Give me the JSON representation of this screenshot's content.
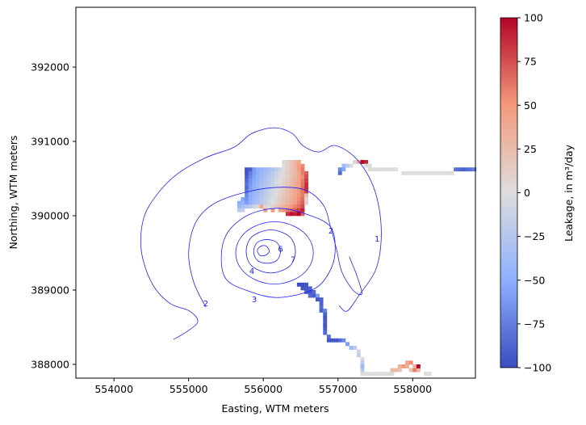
{
  "chart_data": {
    "type": "heatmap",
    "title": "",
    "xlabel": "Easting, WTM meters",
    "ylabel": "Northing, WTM meters",
    "xlim": [
      553490,
      558840
    ],
    "ylim": [
      387815,
      392805
    ],
    "xticks": [
      554000,
      555000,
      556000,
      557000,
      558000
    ],
    "yticks": [
      388000,
      389000,
      390000,
      391000,
      392000
    ],
    "grid": false,
    "colormap": {
      "name": "coolwarm",
      "stops": [
        "#3b4cc0",
        "#8db0fe",
        "#dddddd",
        "#f49a7b",
        "#b40426"
      ]
    },
    "colorbar": {
      "label": "Leakage, in m³/day",
      "range": [
        -100,
        100
      ],
      "ticks": [
        -100,
        -75,
        -50,
        -25,
        0,
        25,
        50,
        75,
        100
      ],
      "placement": "right"
    },
    "cell_size": 50,
    "cell_rows": [
      {
        "n": 390700,
        "e0": 556250,
        "v": [
          5,
          10,
          20,
          30,
          40
        ]
      },
      {
        "n": 390650,
        "e0": 556250,
        "v": [
          0,
          10,
          20,
          30,
          45,
          55
        ]
      },
      {
        "n": 390600,
        "e0": 555750,
        "v": [
          -95,
          -90,
          -60,
          -50,
          -45,
          -40,
          -35,
          -30,
          -20,
          -10,
          0,
          10,
          20,
          30,
          50,
          60
        ]
      },
      {
        "n": 390550,
        "e0": 555750,
        "v": [
          -95,
          -75,
          -60,
          -50,
          -42,
          -35,
          -28,
          -20,
          -12,
          -5,
          5,
          12,
          20,
          28,
          38,
          60,
          70
        ]
      },
      {
        "n": 390500,
        "e0": 555750,
        "v": [
          -90,
          -70,
          -55,
          -48,
          -40,
          -32,
          -25,
          -18,
          -10,
          -3,
          5,
          12,
          20,
          30,
          40,
          55,
          75
        ]
      },
      {
        "n": 390450,
        "e0": 555750,
        "v": [
          -85,
          -65,
          -52,
          -45,
          -38,
          -30,
          -22,
          -15,
          -8,
          0,
          8,
          15,
          24,
          32,
          42,
          60,
          80
        ]
      },
      {
        "n": 390400,
        "e0": 555750,
        "v": [
          -80,
          -62,
          -50,
          -42,
          -35,
          -28,
          -20,
          -12,
          -5,
          2,
          10,
          18,
          26,
          35,
          45,
          62,
          85
        ]
      },
      {
        "n": 390350,
        "e0": 555750,
        "v": [
          -85,
          -60,
          -48,
          -40,
          -32,
          -25,
          -18,
          -10,
          -3,
          5,
          12,
          20,
          28,
          38,
          48,
          65,
          85
        ]
      },
      {
        "n": 390300,
        "e0": 555750,
        "v": [
          -75,
          -55,
          -45,
          -38,
          -30,
          -22,
          -15,
          -8,
          0,
          8,
          15,
          22,
          30,
          40,
          50,
          62,
          80
        ]
      },
      {
        "n": 390250,
        "e0": 555750,
        "v": [
          -70,
          -52,
          -42,
          -35,
          -28,
          -20,
          -12,
          -5,
          2,
          10,
          18,
          25,
          32,
          42,
          52,
          60,
          20
        ]
      },
      {
        "n": 390200,
        "e0": 555650,
        "v": [
          null,
          -55,
          -65,
          -50,
          -40,
          -33,
          -25,
          -18,
          -10,
          -3,
          5,
          12,
          20,
          28,
          35,
          45,
          55,
          65,
          5
        ]
      },
      {
        "n": 390150,
        "e0": 555650,
        "v": [
          -50,
          -45,
          -60,
          -48,
          -38,
          -30,
          -22,
          -15,
          -8,
          0,
          8,
          15,
          22,
          30,
          38,
          48,
          58,
          70,
          10
        ]
      },
      {
        "n": 390100,
        "e0": 555650,
        "v": [
          -40,
          -35,
          -30,
          -25,
          -10,
          5,
          40,
          -5,
          2,
          10,
          18,
          25,
          32,
          40,
          50,
          58,
          65,
          75
        ]
      },
      {
        "n": 390050,
        "e0": 555650,
        "v": [
          -20,
          -15,
          null,
          null,
          null,
          null,
          null,
          45,
          null,
          50,
          null,
          45,
          50,
          60,
          65,
          70,
          80,
          90
        ]
      },
      {
        "n": 390000,
        "e0": 556300,
        "v": [
          85,
          95,
          90,
          100,
          70
        ]
      },
      {
        "n": 390700,
        "e0": 557200,
        "v": [
          10,
          30,
          100,
          90
        ]
      },
      {
        "n": 390650,
        "e0": 557050,
        "v": [
          -40,
          -25,
          -5,
          null,
          null,
          null,
          0,
          0
        ]
      },
      {
        "n": 390600,
        "e0": 557000,
        "v": [
          -70,
          -55,
          null,
          null,
          null,
          null,
          null,
          null,
          0,
          0,
          0,
          0,
          0,
          0,
          0,
          0
        ]
      },
      {
        "n": 390550,
        "e0": 557000,
        "v": [
          -85
        ]
      },
      {
        "n": 390550,
        "e0": 557850,
        "v": [
          0,
          0,
          0,
          0,
          0,
          0,
          0,
          0,
          0,
          0,
          0,
          0,
          0,
          0
        ]
      },
      {
        "n": 390600,
        "e0": 558550,
        "v": [
          -80,
          -85,
          -90,
          -85,
          -80,
          -75
        ]
      },
      {
        "n": 389050,
        "e0": 556450,
        "v": [
          -100,
          -100,
          -95
        ]
      },
      {
        "n": 389000,
        "e0": 556500,
        "v": [
          -95,
          -95,
          -90
        ]
      },
      {
        "n": 388950,
        "e0": 556550,
        "v": [
          -90,
          -95,
          -85
        ]
      },
      {
        "n": 388900,
        "e0": 556600,
        "v": [
          -85,
          -90,
          -60
        ]
      },
      {
        "n": 388850,
        "e0": 556700,
        "v": [
          -95,
          -90
        ]
      },
      {
        "n": 388800,
        "e0": 556750,
        "v": [
          -90
        ]
      },
      {
        "n": 388750,
        "e0": 556750,
        "v": [
          -85
        ]
      },
      {
        "n": 388700,
        "e0": 556750,
        "v": [
          -90,
          -70
        ]
      },
      {
        "n": 388650,
        "e0": 556800,
        "v": [
          -90
        ]
      },
      {
        "n": 388600,
        "e0": 556800,
        "v": [
          -95
        ]
      },
      {
        "n": 388550,
        "e0": 556800,
        "v": [
          -90
        ]
      },
      {
        "n": 388500,
        "e0": 556800,
        "v": [
          -95
        ]
      },
      {
        "n": 388450,
        "e0": 556800,
        "v": [
          -90
        ]
      },
      {
        "n": 388400,
        "e0": 556800,
        "v": [
          -85
        ]
      },
      {
        "n": 388350,
        "e0": 556850,
        "v": [
          -85
        ]
      },
      {
        "n": 388300,
        "e0": 556850,
        "v": [
          -95,
          -95,
          -95,
          -85,
          -70
        ]
      },
      {
        "n": 388250,
        "e0": 557100,
        "v": [
          -60
        ]
      },
      {
        "n": 388200,
        "e0": 557150,
        "v": [
          -40,
          -20
        ]
      },
      {
        "n": 388150,
        "e0": 557250,
        "v": [
          -10
        ]
      },
      {
        "n": 388100,
        "e0": 557250,
        "v": [
          -15
        ]
      },
      {
        "n": 388050,
        "e0": 557300,
        "v": [
          -5
        ]
      },
      {
        "n": 388000,
        "e0": 557300,
        "v": [
          -20
        ]
      },
      {
        "n": 387950,
        "e0": 557300,
        "v": [
          -40
        ]
      },
      {
        "n": 387900,
        "e0": 557300,
        "v": [
          -25
        ]
      },
      {
        "n": 387850,
        "e0": 557300,
        "v": [
          0,
          0,
          0,
          0,
          0,
          0,
          0,
          0,
          0
        ]
      },
      {
        "n": 387850,
        "e0": 558150,
        "v": [
          0,
          0
        ]
      },
      {
        "n": 387900,
        "e0": 557700,
        "v": [
          25,
          30,
          20,
          null,
          null,
          20,
          60,
          30
        ]
      },
      {
        "n": 387950,
        "e0": 557800,
        "v": [
          30,
          50,
          35,
          null,
          35,
          100
        ]
      },
      {
        "n": 388000,
        "e0": 557900,
        "v": [
          40,
          55
        ]
      }
    ],
    "contours": [
      {
        "level": 1,
        "closed": false,
        "points": [
          [
            554798,
            388336
          ],
          [
            554982,
            388445
          ],
          [
            555122,
            388576
          ],
          [
            555014,
            388717
          ],
          [
            554744,
            388825
          ],
          [
            554506,
            389097
          ],
          [
            554366,
            389532
          ],
          [
            554398,
            389967
          ],
          [
            554582,
            390293
          ],
          [
            554852,
            390565
          ],
          [
            555230,
            390782
          ],
          [
            555609,
            390923
          ],
          [
            555847,
            391108
          ],
          [
            556149,
            391184
          ],
          [
            556387,
            391108
          ],
          [
            556528,
            390945
          ],
          [
            556744,
            390858
          ],
          [
            556960,
            390945
          ],
          [
            557230,
            390782
          ],
          [
            557447,
            390456
          ],
          [
            557555,
            390076
          ],
          [
            557576,
            389641
          ],
          [
            557500,
            389261
          ],
          [
            557284,
            388934
          ],
          [
            557122,
            388717
          ],
          [
            557014,
            388793
          ]
        ]
      },
      {
        "level": 2,
        "closed": false,
        "points": [
          [
            555230,
            388770
          ],
          [
            555070,
            389100
          ],
          [
            555000,
            389500
          ],
          [
            555090,
            389900
          ],
          [
            555320,
            390150
          ],
          [
            555700,
            390300
          ],
          [
            556150,
            390380
          ],
          [
            556550,
            390350
          ],
          [
            556800,
            390150
          ],
          [
            556900,
            389850
          ],
          [
            556980,
            389550
          ],
          [
            557050,
            389250
          ],
          [
            557200,
            389000
          ],
          [
            557320,
            388950
          ],
          [
            557250,
            389200
          ],
          [
            557150,
            389450
          ]
        ]
      },
      {
        "level": 3,
        "closed": true,
        "points": [
          [
            556960,
            389500
          ],
          [
            556900,
            389850
          ],
          [
            556580,
            390020
          ],
          [
            556200,
            390100
          ],
          [
            555820,
            390020
          ],
          [
            555540,
            389800
          ],
          [
            555440,
            389500
          ],
          [
            555500,
            389150
          ],
          [
            555820,
            388980
          ],
          [
            556200,
            388900
          ],
          [
            556650,
            389000
          ],
          [
            556860,
            389200
          ]
        ]
      },
      {
        "level": 4,
        "closed": true,
        "points": [
          [
            556670,
            389500
          ],
          [
            556600,
            389710
          ],
          [
            556410,
            389860
          ],
          [
            556150,
            389920
          ],
          [
            555890,
            389860
          ],
          [
            555700,
            389710
          ],
          [
            555630,
            389500
          ],
          [
            555700,
            389290
          ],
          [
            555890,
            389140
          ],
          [
            556150,
            389080
          ],
          [
            556410,
            389140
          ],
          [
            556600,
            389290
          ]
        ]
      },
      {
        "level": 5,
        "closed": true,
        "points": [
          [
            556430,
            389520
          ],
          [
            556350,
            389720
          ],
          [
            556100,
            389810
          ],
          [
            555850,
            389720
          ],
          [
            555770,
            389520
          ],
          [
            555850,
            389320
          ],
          [
            556100,
            389230
          ],
          [
            556350,
            389320
          ]
        ]
      },
      {
        "level": 6,
        "closed": true,
        "points": [
          [
            556230,
            389520
          ],
          [
            556180,
            389640
          ],
          [
            556050,
            389680
          ],
          [
            555920,
            389640
          ],
          [
            555870,
            389520
          ],
          [
            555920,
            389400
          ],
          [
            556050,
            389360
          ],
          [
            556180,
            389400
          ]
        ]
      },
      {
        "level": 7,
        "closed": true,
        "points": [
          [
            556080,
            389530
          ],
          [
            556040,
            389590
          ],
          [
            556000,
            389600
          ],
          [
            555950,
            389580
          ],
          [
            555920,
            389530
          ],
          [
            555950,
            389470
          ],
          [
            556000,
            389460
          ],
          [
            556050,
            389480
          ]
        ]
      }
    ],
    "contour_labels": [
      {
        "text": "1",
        "e": 557523,
        "n": 389695
      },
      {
        "text": "2",
        "e": 556906,
        "n": 389804
      },
      {
        "text": "2",
        "e": 555230,
        "n": 388825
      },
      {
        "text": "3",
        "e": 555879,
        "n": 388880
      },
      {
        "text": "4",
        "e": 555847,
        "n": 389261
      },
      {
        "text": "6",
        "e": 556230,
        "n": 389560
      },
      {
        "text": "7",
        "e": 556400,
        "n": 389420
      }
    ]
  }
}
